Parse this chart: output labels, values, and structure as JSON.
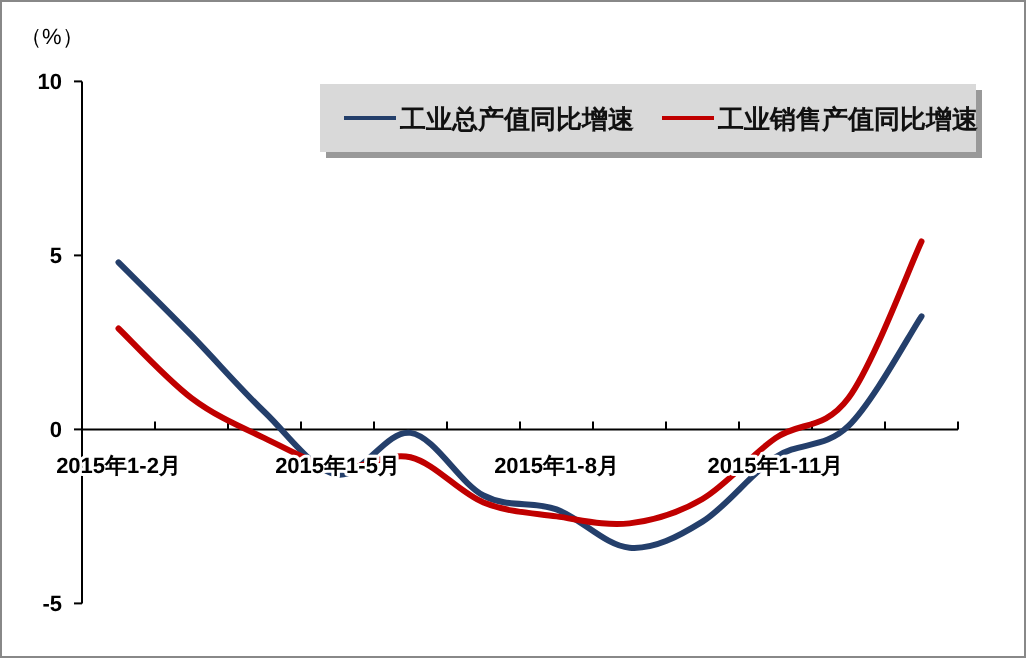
{
  "chart_data": {
    "type": "line",
    "ylabel": "（%）",
    "categories": [
      "2015年1-2月",
      null,
      null,
      "2015年1-5月",
      null,
      null,
      "2015年1-8月",
      null,
      null,
      "2015年1-11月",
      null,
      null
    ],
    "series": [
      {
        "name": "工业总产值同比增速",
        "color": "#243f6b",
        "values": [
          4.8,
          2.7,
          0.5,
          -1.3,
          -0.1,
          -1.9,
          -2.3,
          -3.4,
          -2.65,
          -0.8,
          0.1,
          3.25
        ]
      },
      {
        "name": "工业销售产值同比增速",
        "color": "#c00000",
        "values": [
          2.9,
          0.9,
          -0.25,
          -1.1,
          -0.8,
          -2.1,
          -2.5,
          -2.7,
          -2.0,
          -0.25,
          0.9,
          5.4
        ]
      }
    ],
    "ylim": [
      -5,
      10
    ],
    "yticks": [
      -5,
      0,
      5,
      10
    ],
    "legend": "top right"
  }
}
